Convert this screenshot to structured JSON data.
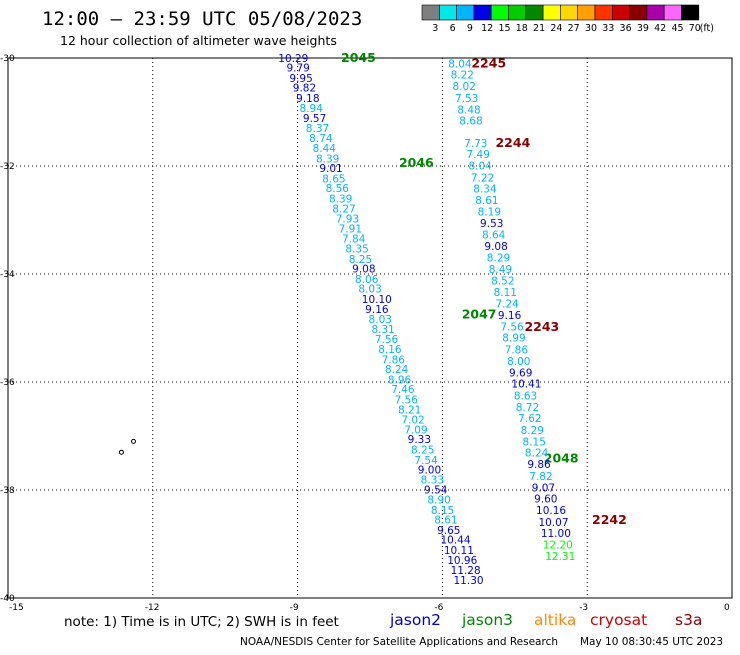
{
  "header": {
    "title": "12:00 – 23:59 UTC 05/08/2023",
    "subtitle": "12 hour collection of altimeter wave heights"
  },
  "colorbar": {
    "colors": [
      "#7f7f7f",
      "#00e8e8",
      "#00b4ff",
      "#0000e6",
      "#00ff00",
      "#00cc00",
      "#008800",
      "#ffff00",
      "#ffd700",
      "#ffa000",
      "#ff3300",
      "#cc0000",
      "#880000",
      "#aa00aa",
      "#ff66ff",
      "#000000"
    ],
    "labels": [
      "3",
      "6",
      "9",
      "12",
      "15",
      "18",
      "21",
      "24",
      "27",
      "30",
      "33",
      "36",
      "39",
      "42",
      "45",
      "70"
    ],
    "unit_label": "(ft)"
  },
  "note": "note: 1) Time is in UTC; 2) SWH is in feet",
  "satellite_legend": [
    {
      "label": "jason2",
      "color": "#0000cc"
    },
    {
      "label": "jason3",
      "color": "#008800"
    },
    {
      "label": "altika",
      "color": "#ff8800"
    },
    {
      "label": "cryosat",
      "color": "#cc0000"
    },
    {
      "label": "s3a",
      "color": "#880000"
    }
  ],
  "credit": "NOAA/NESDIS Center for Satellite Applications and Research",
  "generated": "May 10 08:30:45 UTC 2023",
  "map": {
    "lon_ticks": [
      -15,
      -12,
      -9,
      -6,
      -3,
      0
    ],
    "lat_ticks": [
      -30,
      -32,
      -34,
      -36,
      -38,
      -40
    ],
    "lon_tick_labels": [
      "-15",
      "-12",
      "-9",
      "-6",
      "-3",
      "0"
    ],
    "lat_tick_labels": [
      "-30",
      "-32",
      "-34",
      "-36",
      "-38",
      "-40"
    ]
  },
  "chart_data": {
    "type": "scatter",
    "title": "12:00 – 23:59 UTC 05/08/2023",
    "subtitle": "12 hour collection of altimeter wave heights",
    "xlim": [
      -15,
      0
    ],
    "ylim": [
      -40,
      -30
    ],
    "grid": true,
    "tracks": [
      {
        "satellite": "jason3",
        "color": "#008800",
        "time_labels": [
          {
            "text": "2045",
            "lon": -8.1,
            "lat": -30.0
          },
          {
            "text": "2046",
            "lon": -6.9,
            "lat": -31.94
          },
          {
            "text": "2047",
            "lon": -5.6,
            "lat": -34.75
          },
          {
            "text": "2048",
            "lon": -3.9,
            "lat": -37.42
          }
        ],
        "points": [
          {
            "lat": -30.0,
            "lon": -9.4,
            "v": 10.29,
            "c": "#0000e6"
          },
          {
            "lat": -30.18,
            "lon": -9.23,
            "v": 9.79,
            "c": "#0000e6"
          },
          {
            "lat": -30.37,
            "lon": -9.17,
            "v": 9.95,
            "c": "#0000e6"
          },
          {
            "lat": -30.55,
            "lon": -9.1,
            "v": 9.82,
            "c": "#0000e6"
          },
          {
            "lat": -30.74,
            "lon": -9.03,
            "v": 9.18,
            "c": "#0000e6"
          },
          {
            "lat": -30.93,
            "lon": -8.96,
            "v": 8.94,
            "c": "#00b4ff"
          },
          {
            "lat": -31.11,
            "lon": -8.89,
            "v": 9.57,
            "c": "#0000e6"
          },
          {
            "lat": -31.3,
            "lon": -8.83,
            "v": 8.37,
            "c": "#00b4ff"
          },
          {
            "lat": -31.48,
            "lon": -8.76,
            "v": 8.74,
            "c": "#00b4ff"
          },
          {
            "lat": -31.67,
            "lon": -8.69,
            "v": 8.44,
            "c": "#00b4ff"
          },
          {
            "lat": -31.86,
            "lon": -8.62,
            "v": 8.39,
            "c": "#00b4ff"
          },
          {
            "lat": -32.04,
            "lon": -8.55,
            "v": 9.01,
            "c": "#0000e6"
          },
          {
            "lat": -32.23,
            "lon": -8.49,
            "v": 8.65,
            "c": "#00b4ff"
          },
          {
            "lat": -32.41,
            "lon": -8.42,
            "v": 8.56,
            "c": "#00b4ff"
          },
          {
            "lat": -32.6,
            "lon": -8.35,
            "v": 8.39,
            "c": "#00b4ff"
          },
          {
            "lat": -32.79,
            "lon": -8.28,
            "v": 8.27,
            "c": "#00b4ff"
          },
          {
            "lat": -32.97,
            "lon": -8.21,
            "v": 7.93,
            "c": "#00b4ff"
          },
          {
            "lat": -33.16,
            "lon": -8.15,
            "v": 7.91,
            "c": "#00b4ff"
          },
          {
            "lat": -33.34,
            "lon": -8.08,
            "v": 7.84,
            "c": "#00b4ff"
          },
          {
            "lat": -33.53,
            "lon": -8.01,
            "v": 8.35,
            "c": "#00b4ff"
          },
          {
            "lat": -33.72,
            "lon": -7.94,
            "v": 8.25,
            "c": "#00b4ff"
          },
          {
            "lat": -33.9,
            "lon": -7.87,
            "v": 9.08,
            "c": "#0000e6"
          },
          {
            "lat": -34.09,
            "lon": -7.81,
            "v": 8.06,
            "c": "#00b4ff"
          },
          {
            "lat": -34.27,
            "lon": -7.74,
            "v": 8.03,
            "c": "#00b4ff"
          },
          {
            "lat": -34.46,
            "lon": -7.67,
            "v": 10.1,
            "c": "#0000e6"
          },
          {
            "lat": -34.65,
            "lon": -7.6,
            "v": 9.16,
            "c": "#0000e6"
          },
          {
            "lat": -34.83,
            "lon": -7.53,
            "v": 8.03,
            "c": "#00b4ff"
          },
          {
            "lat": -35.02,
            "lon": -7.47,
            "v": 8.31,
            "c": "#00b4ff"
          },
          {
            "lat": -35.2,
            "lon": -7.4,
            "v": 7.56,
            "c": "#00b4ff"
          },
          {
            "lat": -35.39,
            "lon": -7.33,
            "v": 8.16,
            "c": "#00b4ff"
          },
          {
            "lat": -35.58,
            "lon": -7.26,
            "v": 7.86,
            "c": "#00b4ff"
          },
          {
            "lat": -35.76,
            "lon": -7.19,
            "v": 8.24,
            "c": "#00b4ff"
          },
          {
            "lat": -35.95,
            "lon": -7.13,
            "v": 8.96,
            "c": "#00b4ff"
          },
          {
            "lat": -36.13,
            "lon": -7.06,
            "v": 7.46,
            "c": "#00b4ff"
          },
          {
            "lat": -36.32,
            "lon": -6.99,
            "v": 7.56,
            "c": "#00b4ff"
          },
          {
            "lat": -36.51,
            "lon": -6.92,
            "v": 8.21,
            "c": "#00b4ff"
          },
          {
            "lat": -36.69,
            "lon": -6.85,
            "v": 7.02,
            "c": "#00b4ff"
          },
          {
            "lat": -36.88,
            "lon": -6.79,
            "v": 7.09,
            "c": "#00b4ff"
          },
          {
            "lat": -37.06,
            "lon": -6.72,
            "v": 9.33,
            "c": "#0000e6"
          },
          {
            "lat": -37.25,
            "lon": -6.65,
            "v": 8.25,
            "c": "#00b4ff"
          },
          {
            "lat": -37.44,
            "lon": -6.58,
            "v": 7.54,
            "c": "#00b4ff"
          },
          {
            "lat": -37.62,
            "lon": -6.51,
            "v": 9.0,
            "c": "#0000e6"
          },
          {
            "lat": -37.81,
            "lon": -6.45,
            "v": 8.33,
            "c": "#00b4ff"
          },
          {
            "lat": -37.99,
            "lon": -6.38,
            "v": 9.54,
            "c": "#0000e6"
          },
          {
            "lat": -38.18,
            "lon": -6.31,
            "v": 8.9,
            "c": "#00b4ff"
          },
          {
            "lat": -38.37,
            "lon": -6.24,
            "v": 8.15,
            "c": "#00b4ff"
          },
          {
            "lat": -38.55,
            "lon": -6.17,
            "v": 8.61,
            "c": "#00b4ff"
          },
          {
            "lat": -38.74,
            "lon": -6.11,
            "v": 9.65,
            "c": "#0000e6"
          },
          {
            "lat": -38.92,
            "lon": -6.04,
            "v": 10.44,
            "c": "#0000e6"
          },
          {
            "lat": -39.11,
            "lon": -5.97,
            "v": 10.11,
            "c": "#0000e6"
          },
          {
            "lat": -39.3,
            "lon": -5.9,
            "v": 10.96,
            "c": "#0000e6"
          },
          {
            "lat": -39.48,
            "lon": -5.83,
            "v": 11.28,
            "c": "#0000e6"
          },
          {
            "lat": -39.67,
            "lon": -5.77,
            "v": 11.3,
            "c": "#0000e6"
          }
        ]
      },
      {
        "satellite": "s3a",
        "color": "#880000",
        "time_labels": [
          {
            "text": "2245",
            "lon": -5.4,
            "lat": -30.1
          },
          {
            "text": "2244",
            "lon": -4.9,
            "lat": -31.57
          },
          {
            "text": "2243",
            "lon": -4.3,
            "lat": -34.98
          },
          {
            "text": "2242",
            "lon": -2.9,
            "lat": -38.56
          }
        ],
        "points": [
          {
            "lat": -30.1,
            "lon": -5.88,
            "v": 8.04,
            "c": "#00b4ff"
          },
          {
            "lat": -30.31,
            "lon": -5.83,
            "v": 8.22,
            "c": "#00b4ff"
          },
          {
            "lat": -30.52,
            "lon": -5.79,
            "v": 8.02,
            "c": "#00b4ff"
          },
          {
            "lat": -30.74,
            "lon": -5.74,
            "v": 7.53,
            "c": "#00b4ff"
          },
          {
            "lat": -30.95,
            "lon": -5.69,
            "v": 8.48,
            "c": "#00b4ff"
          },
          {
            "lat": -31.16,
            "lon": -5.65,
            "v": 8.68,
            "c": "#00b4ff"
          },
          {
            "lat": -31.57,
            "lon": -5.55,
            "v": 7.73,
            "c": "#00b4ff"
          },
          {
            "lat": -31.78,
            "lon": -5.5,
            "v": 7.49,
            "c": "#00b4ff"
          },
          {
            "lat": -31.99,
            "lon": -5.46,
            "v": 8.04,
            "c": "#00b4ff"
          },
          {
            "lat": -32.21,
            "lon": -5.41,
            "v": 7.22,
            "c": "#00b4ff"
          },
          {
            "lat": -32.42,
            "lon": -5.36,
            "v": 8.34,
            "c": "#00b4ff"
          },
          {
            "lat": -32.63,
            "lon": -5.32,
            "v": 8.61,
            "c": "#00b4ff"
          },
          {
            "lat": -32.84,
            "lon": -5.27,
            "v": 8.19,
            "c": "#00b4ff"
          },
          {
            "lat": -33.06,
            "lon": -5.22,
            "v": 9.53,
            "c": "#0000e6"
          },
          {
            "lat": -33.27,
            "lon": -5.18,
            "v": 8.64,
            "c": "#00b4ff"
          },
          {
            "lat": -33.48,
            "lon": -5.13,
            "v": 9.08,
            "c": "#0000e6"
          },
          {
            "lat": -33.69,
            "lon": -5.08,
            "v": 8.29,
            "c": "#00b4ff"
          },
          {
            "lat": -33.91,
            "lon": -5.04,
            "v": 8.49,
            "c": "#00b4ff"
          },
          {
            "lat": -34.12,
            "lon": -4.99,
            "v": 8.52,
            "c": "#00b4ff"
          },
          {
            "lat": -34.33,
            "lon": -4.94,
            "v": 8.11,
            "c": "#00b4ff"
          },
          {
            "lat": -34.55,
            "lon": -4.9,
            "v": 7.24,
            "c": "#00b4ff"
          },
          {
            "lat": -34.76,
            "lon": -4.85,
            "v": 9.16,
            "c": "#0000e6"
          },
          {
            "lat": -34.97,
            "lon": -4.8,
            "v": 7.56,
            "c": "#00b4ff"
          },
          {
            "lat": -35.18,
            "lon": -4.76,
            "v": 8.99,
            "c": "#00b4ff"
          },
          {
            "lat": -35.4,
            "lon": -4.71,
            "v": 7.86,
            "c": "#00b4ff"
          },
          {
            "lat": -35.61,
            "lon": -4.66,
            "v": 8.0,
            "c": "#00b4ff"
          },
          {
            "lat": -35.82,
            "lon": -4.62,
            "v": 9.69,
            "c": "#0000e6"
          },
          {
            "lat": -36.03,
            "lon": -4.57,
            "v": 10.41,
            "c": "#0000e6"
          },
          {
            "lat": -36.25,
            "lon": -4.52,
            "v": 8.63,
            "c": "#00b4ff"
          },
          {
            "lat": -36.46,
            "lon": -4.48,
            "v": 8.72,
            "c": "#00b4ff"
          },
          {
            "lat": -36.67,
            "lon": -4.43,
            "v": 7.62,
            "c": "#00b4ff"
          },
          {
            "lat": -36.89,
            "lon": -4.38,
            "v": 8.29,
            "c": "#00b4ff"
          },
          {
            "lat": -37.1,
            "lon": -4.34,
            "v": 8.15,
            "c": "#00b4ff"
          },
          {
            "lat": -37.31,
            "lon": -4.29,
            "v": 8.24,
            "c": "#00b4ff"
          },
          {
            "lat": -37.52,
            "lon": -4.24,
            "v": 9.86,
            "c": "#0000e6"
          },
          {
            "lat": -37.74,
            "lon": -4.2,
            "v": 7.82,
            "c": "#00b4ff"
          },
          {
            "lat": -37.95,
            "lon": -4.15,
            "v": 9.07,
            "c": "#0000e6"
          },
          {
            "lat": -38.16,
            "lon": -4.1,
            "v": 9.6,
            "c": "#0000e6"
          },
          {
            "lat": -38.37,
            "lon": -4.06,
            "v": 10.16,
            "c": "#0000e6"
          },
          {
            "lat": -38.59,
            "lon": -4.01,
            "v": 10.07,
            "c": "#0000e6"
          },
          {
            "lat": -38.8,
            "lon": -3.96,
            "v": 11.0,
            "c": "#0000e6"
          },
          {
            "lat": -39.01,
            "lon": -3.92,
            "v": 12.2,
            "c": "#00ff00"
          },
          {
            "lat": -39.22,
            "lon": -3.87,
            "v": 12.31,
            "c": "#00ff00"
          }
        ]
      }
    ],
    "islands": [
      {
        "lon": -12.4,
        "lat": -37.1
      },
      {
        "lon": -12.65,
        "lat": -37.3
      }
    ]
  }
}
